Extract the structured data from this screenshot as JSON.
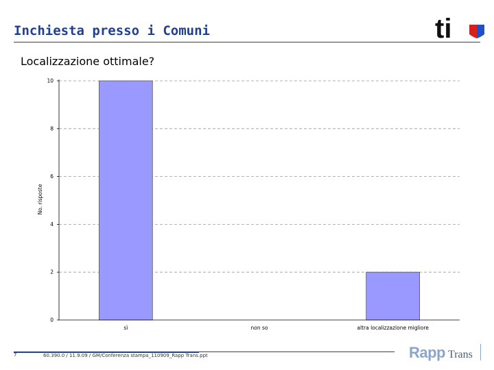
{
  "header": {
    "title": "Inchiesta presso i Comuni",
    "logo_text": "ti",
    "logo_colors": {
      "text": "#111111",
      "shield_red": "#d62020",
      "shield_blue": "#2050c8"
    }
  },
  "chart_data": {
    "type": "bar",
    "title": "Localizzazione ottimale?",
    "categories": [
      "sì",
      "non so",
      "altra localizzazione migliore"
    ],
    "values": [
      10,
      0,
      2
    ],
    "xlabel": "",
    "ylabel": "No. risposte",
    "ylim": [
      0,
      10
    ],
    "yticks": [
      0,
      2,
      4,
      6,
      8,
      10
    ],
    "grid": true,
    "bar_color": "#9999ff",
    "bar_border": "#555555"
  },
  "footer": {
    "page_number": "7",
    "text": "60.390.0 / 11.9.09 / GM/Conferenza stampa_110909_Rapp Trans.ppt",
    "logo_rapp": "Rapp",
    "logo_trans": "Trans"
  }
}
